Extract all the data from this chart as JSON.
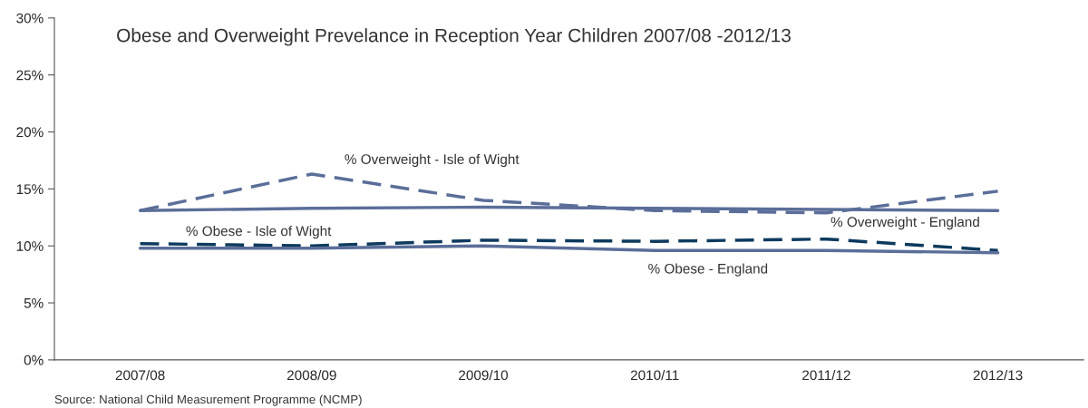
{
  "chart_data": {
    "type": "line",
    "title": "Obese and Overweight Prevelance in Reception Year Children 2007/08 -2012/13",
    "categories": [
      "2007/08",
      "2008/09",
      "2009/10",
      "2010/11",
      "2011/12",
      "2012/13"
    ],
    "series": [
      {
        "name": "% Overweight - Isle of Wight",
        "color": "#5b6e99",
        "line_style": "dashed",
        "values": [
          13.1,
          16.3,
          14.0,
          13.1,
          12.9,
          14.8
        ]
      },
      {
        "name": "% Overweight - England",
        "color": "#5b6e99",
        "line_style": "solid",
        "values": [
          13.1,
          13.3,
          13.4,
          13.3,
          13.2,
          13.1
        ]
      },
      {
        "name": "% Obese - Isle of Wight",
        "color": "#0d3a5e",
        "line_style": "dashed",
        "values": [
          10.2,
          10.0,
          10.5,
          10.4,
          10.6,
          9.6
        ]
      },
      {
        "name": "% Obese - England",
        "color": "#5b6e99",
        "line_style": "solid",
        "values": [
          9.8,
          9.8,
          10.0,
          9.6,
          9.6,
          9.4
        ]
      }
    ],
    "ylim": [
      0,
      30
    ],
    "yticks": [
      {
        "value": 0,
        "label": "0%"
      },
      {
        "value": 5,
        "label": "5%"
      },
      {
        "value": 10,
        "label": "10%"
      },
      {
        "value": 15,
        "label": "15%"
      },
      {
        "value": 20,
        "label": "20%"
      },
      {
        "value": 25,
        "label": "25%"
      },
      {
        "value": 30,
        "label": "30%"
      }
    ],
    "grid": false,
    "legend": false,
    "marker": "none",
    "annotations": [
      "Source: National Child Measurement Programme (NCMP)"
    ]
  }
}
